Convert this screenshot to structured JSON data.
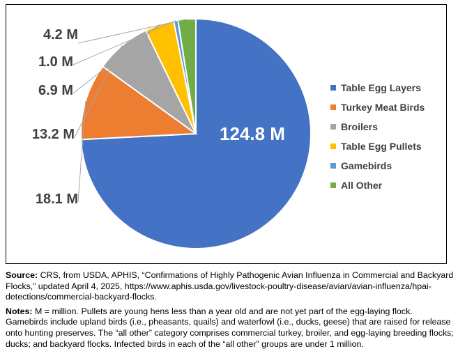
{
  "chart_data": {
    "type": "pie",
    "unit": "million birds",
    "slices": [
      {
        "name": "Table Egg Layers",
        "value": 124.8,
        "label": "124.8 M",
        "color": "#4472C4"
      },
      {
        "name": "Turkey Meat Birds",
        "value": 18.1,
        "label": "18.1 M",
        "color": "#ED7D31"
      },
      {
        "name": "Broilers",
        "value": 13.2,
        "label": "13.2 M",
        "color": "#A5A5A5"
      },
      {
        "name": "Table Egg Pullets",
        "value": 6.9,
        "label": "6.9 M",
        "color": "#FFC000"
      },
      {
        "name": "Gamebirds",
        "value": 1.0,
        "label": "1.0 M",
        "color": "#5B9BD5"
      },
      {
        "name": "All Other",
        "value": 4.2,
        "label": "4.2 M",
        "color": "#70AD47"
      }
    ],
    "legend_position": "right"
  },
  "source": {
    "heading": "Source:",
    "text": " CRS, from USDA, APHIS, “Confirmations of Highly Pathogenic Avian Influenza in Commercial and Backyard Flocks,” updated April 4, 2025, https://www.aphis.usda.gov/livestock-poultry-disease/avian/avian-influenza/hpai-detections/commercial-backyard-flocks."
  },
  "notes": {
    "heading": "Notes:",
    "text": " M = million. Pullets are young hens less than a year old and are not yet part of the egg-laying flock. Gamebirds include upland birds (i.e., pheasants, quails) and waterfowl (i.e., ducks, geese) that are raised for release onto hunting preserves. The “all other” category comprises commercial turkey, broiler, and egg-laying breeding flocks; ducks; and backyard flocks. Infected birds in each of the “all other” groups are under 1 million."
  }
}
